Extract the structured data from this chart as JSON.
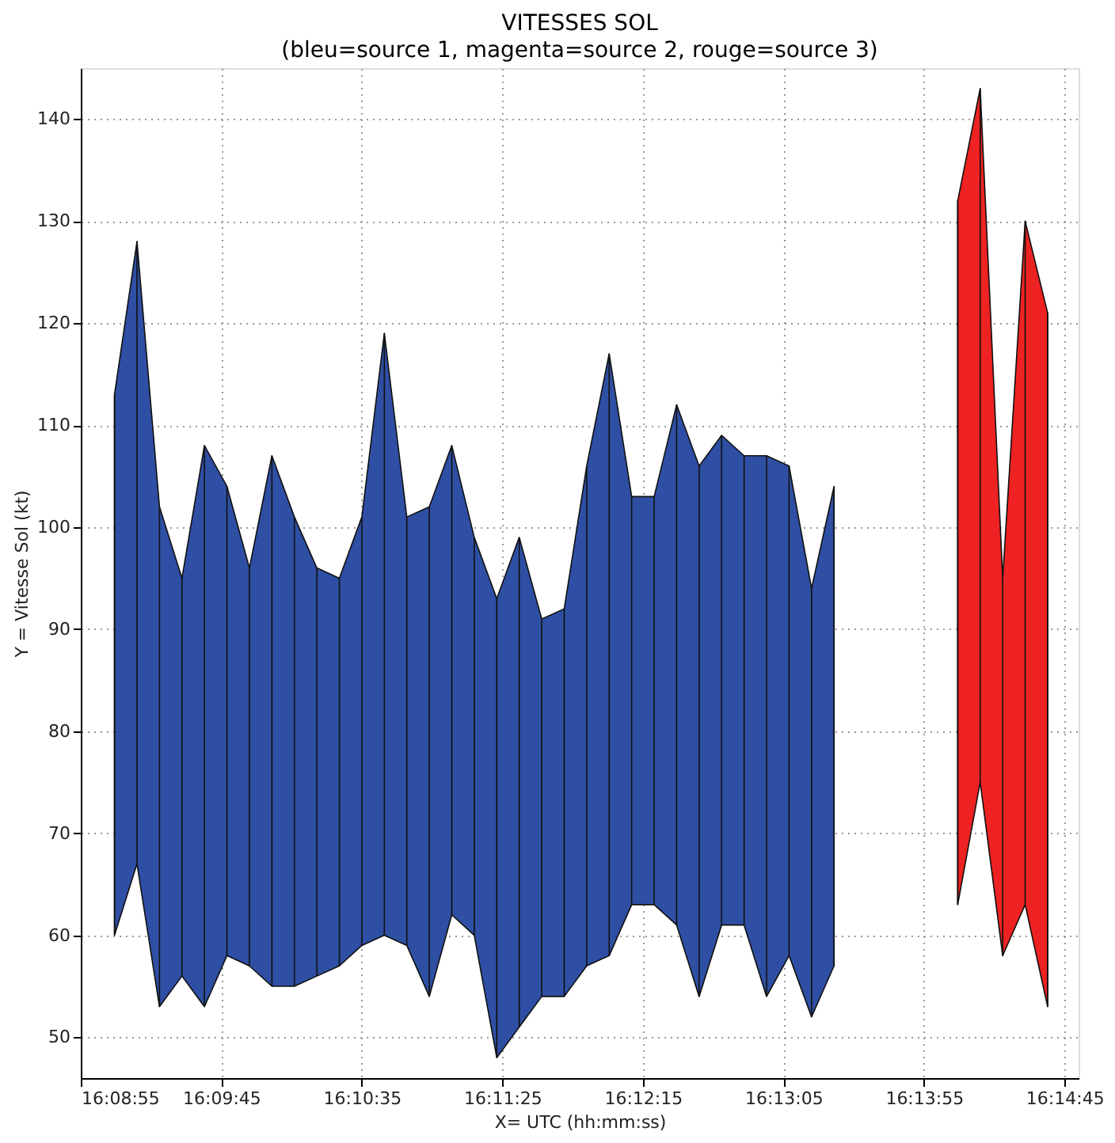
{
  "chart_data": {
    "type": "area",
    "title": "VITESSES SOL",
    "subtitle": "(bleu=source 1, magenta=source 2, rouge=source 3)",
    "xlabel": "X= UTC (hh:mm:ss)",
    "ylabel": "Y = Vitesse Sol (kt)",
    "xlim": [
      16.148611,
      16.247222
    ],
    "ylim": [
      46,
      145
    ],
    "xticks": [
      {
        "value": 16.148611,
        "label": "16:08:55"
      },
      {
        "value": 16.1625,
        "label": "16:09:45"
      },
      {
        "value": 16.176389,
        "label": "16:10:35"
      },
      {
        "value": 16.190278,
        "label": "16:11:25"
      },
      {
        "value": 16.204167,
        "label": "16:12:15"
      },
      {
        "value": 16.218056,
        "label": "16:13:05"
      },
      {
        "value": 16.231944,
        "label": "16:13:55"
      },
      {
        "value": 16.245833,
        "label": "16:14:45"
      }
    ],
    "yticks": [
      50,
      60,
      70,
      80,
      90,
      100,
      110,
      120,
      130,
      140
    ],
    "grid": true,
    "line_style": "dotted",
    "series": [
      {
        "color": "#2e4fa3",
        "x": [
          16.151944,
          16.154167,
          16.156389,
          16.158611,
          16.160833,
          16.163056,
          16.165278,
          16.1675,
          16.169722,
          16.171944,
          16.174167,
          16.176389,
          16.178611,
          16.180833,
          16.183056,
          16.185278,
          16.1875,
          16.189722,
          16.191944,
          16.194167,
          16.196389,
          16.198611,
          16.200833,
          16.203056,
          16.205278,
          16.2075,
          16.209722,
          16.211944,
          16.214167,
          16.216389,
          16.218611,
          16.220833,
          16.223056
        ],
        "values": [
          113,
          128,
          102,
          95,
          108,
          104,
          96,
          107,
          101,
          96,
          95,
          101,
          119,
          101,
          102,
          108,
          99,
          93,
          99,
          91,
          92,
          106,
          117,
          103,
          103,
          112,
          106,
          109,
          107,
          107,
          106,
          94,
          104
        ],
        "errors": [
          [
            60,
            113
          ],
          [
            67,
            128
          ],
          [
            53,
            102
          ],
          [
            56,
            95
          ],
          [
            53,
            108
          ],
          [
            58,
            104
          ],
          [
            57,
            96
          ],
          [
            55,
            107
          ],
          [
            55,
            101
          ],
          [
            56,
            96
          ],
          [
            57,
            95
          ],
          [
            59,
            101
          ],
          [
            60,
            119
          ],
          [
            59,
            101
          ],
          [
            54,
            102
          ],
          [
            62,
            108
          ],
          [
            60,
            99
          ],
          [
            48,
            93
          ],
          [
            51,
            99
          ],
          [
            54,
            91
          ],
          [
            54,
            92
          ],
          [
            57,
            106
          ],
          [
            58,
            117
          ],
          [
            63,
            103
          ],
          [
            63,
            103
          ],
          [
            61,
            112
          ],
          [
            54,
            106
          ],
          [
            61,
            109
          ],
          [
            61,
            107
          ],
          [
            54,
            107
          ],
          [
            58,
            106
          ],
          [
            52,
            94
          ],
          [
            57,
            104
          ]
        ]
      },
      {
        "color": "#ee2222",
        "x": [
          16.235278,
          16.2375,
          16.239722,
          16.241944,
          16.244167
        ],
        "values": [
          132,
          143,
          95,
          130,
          121
        ],
        "errors": [
          [
            63,
            132
          ],
          [
            75,
            143
          ],
          [
            58,
            95
          ],
          [
            63,
            130
          ],
          [
            53,
            121
          ]
        ]
      }
    ]
  }
}
